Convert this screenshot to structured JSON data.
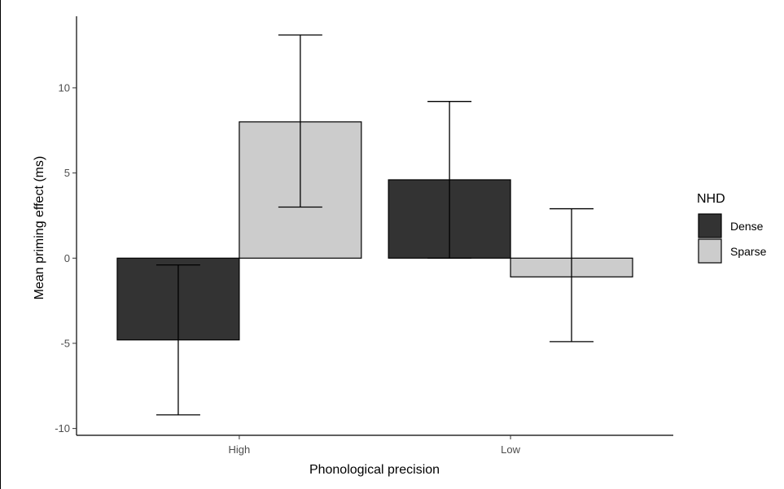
{
  "chart_data": {
    "type": "bar",
    "title": "",
    "xlabel": "Phonological precision",
    "ylabel": "Mean priming effect (ms)",
    "categories": [
      "High",
      "Low"
    ],
    "ylim": [
      -10.4,
      14.2
    ],
    "yticks": [
      -10,
      -5,
      0,
      5,
      10
    ],
    "grid": false,
    "legend": {
      "title": "NHD",
      "placement": "right"
    },
    "series": [
      {
        "name": "Dense",
        "color": "#333333",
        "values": [
          -4.8,
          4.6
        ],
        "error_low": [
          -9.2,
          0.0
        ],
        "error_high": [
          -0.4,
          9.2
        ]
      },
      {
        "name": "Sparse",
        "color": "#cccccc",
        "values": [
          8.0,
          -1.1
        ],
        "error_low": [
          3.0,
          -4.9
        ],
        "error_high": [
          13.1,
          2.9
        ]
      }
    ]
  }
}
